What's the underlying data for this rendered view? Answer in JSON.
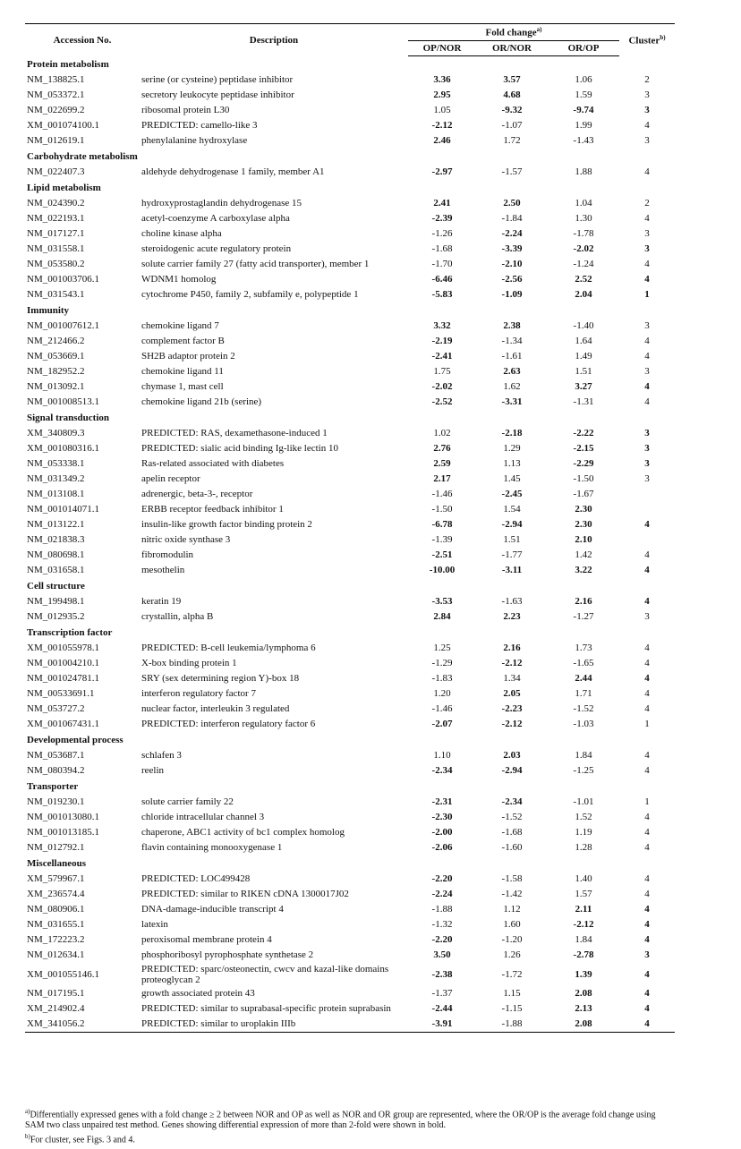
{
  "table": {
    "header": {
      "accession": "Accession No.",
      "description": "Description",
      "fold_change": "Fold change",
      "fold_change_note": "a)",
      "op_nor": "OP/NOR",
      "or_nor": "OR/NOR",
      "or_op": "OR/OP",
      "cluster": "Cluster",
      "cluster_note": "b)"
    },
    "sections": [
      {
        "title": "Protein metabolism",
        "rows": [
          {
            "cells": [
              "NM_138825.1",
              "serine (or cysteine) peptidase inhibitor",
              "3.36",
              "3.57",
              "1.06",
              "2"
            ],
            "bold": [
              2,
              3
            ]
          },
          {
            "cells": [
              "NM_053372.1",
              "secretory leukocyte peptidase inhibitor",
              "2.95",
              "4.68",
              "1.59",
              "3"
            ],
            "bold": [
              2,
              3
            ]
          },
          {
            "cells": [
              "NM_022699.2",
              "ribosomal protein L30",
              "1.05",
              "-9.32",
              "-9.74",
              "3"
            ],
            "bold": [
              3,
              4,
              5
            ]
          },
          {
            "cells": [
              "XM_001074100.1",
              "PREDICTED: camello-like 3",
              "-2.12",
              "-1.07",
              "1.99",
              "4"
            ],
            "bold": [
              2
            ]
          },
          {
            "cells": [
              "NM_012619.1",
              "phenylalanine hydroxylase",
              "2.46",
              "1.72",
              "-1.43",
              "3"
            ],
            "bold": [
              2
            ]
          }
        ]
      },
      {
        "title": "Carbohydrate metabolism",
        "rows": [
          {
            "cells": [
              "NM_022407.3",
              "aldehyde dehydrogenase 1 family, member A1",
              "-2.97",
              "-1.57",
              "1.88",
              "4"
            ],
            "bold": [
              2
            ]
          }
        ]
      },
      {
        "title": "Lipid metabolism",
        "rows": [
          {
            "cells": [
              "NM_024390.2",
              "hydroxyprostaglandin dehydrogenase 15",
              "2.41",
              "2.50",
              "1.04",
              "2"
            ],
            "bold": [
              2,
              3
            ]
          },
          {
            "cells": [
              "NM_022193.1",
              "acetyl-coenzyme A carboxylase alpha",
              "-2.39",
              "-1.84",
              "1.30",
              "4"
            ],
            "bold": [
              2
            ]
          },
          {
            "cells": [
              "NM_017127.1",
              "choline kinase alpha",
              "-1.26",
              "-2.24",
              "-1.78",
              "3"
            ],
            "bold": [
              3
            ]
          },
          {
            "cells": [
              "NM_031558.1",
              "steroidogenic acute regulatory protein",
              "-1.68",
              "-3.39",
              "-2.02",
              "3"
            ],
            "bold": [
              3,
              4,
              5
            ]
          },
          {
            "cells": [
              "NM_053580.2",
              "solute carrier family 27 (fatty acid transporter), member 1",
              "-1.70",
              "-2.10",
              "-1.24",
              "4"
            ],
            "bold": [
              3
            ]
          },
          {
            "cells": [
              "NM_001003706.1",
              "WDNM1 homolog",
              "-6.46",
              "-2.56",
              "2.52",
              "4"
            ],
            "bold": [
              2,
              3,
              4,
              5
            ]
          },
          {
            "cells": [
              "NM_031543.1",
              "cytochrome P450, family 2, subfamily e, polypeptide 1",
              "-5.83",
              "-1.09",
              "2.04",
              "1"
            ],
            "bold": [
              2,
              3,
              4,
              5
            ]
          }
        ]
      },
      {
        "title": "Immunity",
        "rows": [
          {
            "cells": [
              "NM_001007612.1",
              "chemokine ligand 7",
              "3.32",
              "2.38",
              "-1.40",
              "3"
            ],
            "bold": [
              2,
              3
            ]
          },
          {
            "cells": [
              "NM_212466.2",
              "complement factor B",
              "-2.19",
              "-1.34",
              "1.64",
              "4"
            ],
            "bold": [
              2
            ]
          },
          {
            "cells": [
              "NM_053669.1",
              "SH2B adaptor protein 2",
              "-2.41",
              "-1.61",
              "1.49",
              "4"
            ],
            "bold": [
              2
            ]
          },
          {
            "cells": [
              "NM_182952.2",
              "chemokine ligand 11",
              "1.75",
              "2.63",
              "1.51",
              "3"
            ],
            "bold": [
              3
            ]
          },
          {
            "cells": [
              "NM_013092.1",
              "chymase 1, mast cell",
              "-2.02",
              "1.62",
              "3.27",
              "4"
            ],
            "bold": [
              2,
              4,
              5
            ]
          },
          {
            "cells": [
              "NM_001008513.1",
              "chemokine ligand 21b (serine)",
              "-2.52",
              "-3.31",
              "-1.31",
              "4"
            ],
            "bold": [
              2,
              3
            ]
          }
        ]
      },
      {
        "title": "Signal transduction",
        "rows": [
          {
            "cells": [
              "XM_340809.3",
              "PREDICTED: RAS, dexamethasone-induced 1",
              "1.02",
              "-2.18",
              "-2.22",
              "3"
            ],
            "bold": [
              3,
              4,
              5
            ]
          },
          {
            "cells": [
              "XM_001080316.1",
              "PREDICTED: sialic acid binding Ig-like lectin 10",
              "2.76",
              "1.29",
              "-2.15",
              "3"
            ],
            "bold": [
              2,
              4,
              5
            ]
          },
          {
            "cells": [
              "NM_053338.1",
              "Ras-related associated with diabetes",
              "2.59",
              "1.13",
              "-2.29",
              "3"
            ],
            "bold": [
              2,
              4,
              5
            ]
          },
          {
            "cells": [
              "NM_031349.2",
              "apelin receptor",
              "2.17",
              "1.45",
              "-1.50",
              "3"
            ],
            "bold": [
              2
            ]
          },
          {
            "cells": [
              "NM_013108.1",
              "adrenergic, beta-3-, receptor",
              "-1.46",
              "-2.45",
              "-1.67",
              null
            ],
            "bold": [
              3
            ]
          },
          {
            "cells": [
              "NM_001014071.1",
              "ERBB receptor feedback inhibitor 1",
              "-1.50",
              "1.54",
              "2.30",
              null
            ],
            "bold": [
              4
            ]
          },
          {
            "cells": [
              "NM_013122.1",
              "insulin-like growth factor binding protein 2",
              "-6.78",
              "-2.94",
              "2.30",
              "4"
            ],
            "bold": [
              2,
              3,
              4,
              5
            ]
          },
          {
            "cells": [
              "NM_021838.3",
              "nitric oxide synthase 3",
              "-1.39",
              "1.51",
              "2.10",
              null
            ],
            "bold": [
              4
            ]
          },
          {
            "cells": [
              "NM_080698.1",
              "fibromodulin",
              "-2.51",
              "-1.77",
              "1.42",
              "4"
            ],
            "bold": [
              2
            ]
          },
          {
            "cells": [
              "NM_031658.1",
              "mesothelin",
              "-10.00",
              "-3.11",
              "3.22",
              "4"
            ],
            "bold": [
              2,
              3,
              4,
              5
            ]
          }
        ]
      },
      {
        "title": "Cell structure",
        "rows": [
          {
            "cells": [
              "NM_199498.1",
              "keratin 19",
              "-3.53",
              "-1.63",
              "2.16",
              "4"
            ],
            "bold": [
              2,
              4,
              5
            ]
          },
          {
            "cells": [
              "NM_012935.2",
              "crystallin, alpha B",
              "2.84",
              "2.23",
              "-1.27",
              "3"
            ],
            "bold": [
              2,
              3
            ]
          }
        ]
      },
      {
        "title": "Transcription factor",
        "rows": [
          {
            "cells": [
              "XM_001055978.1",
              "PREDICTED: B-cell leukemia/lymphoma 6",
              "1.25",
              "2.16",
              "1.73",
              "4"
            ],
            "bold": [
              3
            ]
          },
          {
            "cells": [
              "NM_001004210.1",
              "X-box binding protein 1",
              "-1.29",
              "-2.12",
              "-1.65",
              "4"
            ],
            "bold": [
              3
            ]
          },
          {
            "cells": [
              "NM_001024781.1",
              "SRY (sex determining region Y)-box 18",
              "-1.83",
              "1.34",
              "2.44",
              "4"
            ],
            "bold": [
              4,
              5
            ]
          },
          {
            "cells": [
              "NM_00533691.1",
              "interferon regulatory factor 7",
              "1.20",
              "2.05",
              "1.71",
              "4"
            ],
            "bold": [
              3
            ]
          },
          {
            "cells": [
              "NM_053727.2",
              "nuclear factor, interleukin 3 regulated",
              "-1.46",
              "-2.23",
              "-1.52",
              "4"
            ],
            "bold": [
              3
            ]
          },
          {
            "cells": [
              "XM_001067431.1",
              "PREDICTED: interferon regulatory factor 6",
              "-2.07",
              "-2.12",
              "-1.03",
              "1"
            ],
            "bold": [
              2,
              3
            ]
          }
        ]
      },
      {
        "title": "Developmental process",
        "rows": [
          {
            "cells": [
              "NM_053687.1",
              "schlafen 3",
              "1.10",
              "2.03",
              "1.84",
              "4"
            ],
            "bold": [
              3
            ]
          },
          {
            "cells": [
              "NM_080394.2",
              "reelin",
              "-2.34",
              "-2.94",
              "-1.25",
              "4"
            ],
            "bold": [
              2,
              3
            ]
          }
        ]
      },
      {
        "title": "Transporter",
        "rows": [
          {
            "cells": [
              "NM_019230.1",
              "solute carrier family 22",
              "-2.31",
              "-2.34",
              "-1.01",
              "1"
            ],
            "bold": [
              2,
              3
            ]
          },
          {
            "cells": [
              "NM_001013080.1",
              "chloride intracellular channel 3",
              "-2.30",
              "-1.52",
              "1.52",
              "4"
            ],
            "bold": [
              2
            ]
          },
          {
            "cells": [
              "NM_001013185.1",
              "chaperone, ABC1 activity of bc1 complex homolog",
              "-2.00",
              "-1.68",
              "1.19",
              "4"
            ],
            "bold": [
              2
            ]
          },
          {
            "cells": [
              "NM_012792.1",
              "flavin containing monooxygenase 1",
              "-2.06",
              "-1.60",
              "1.28",
              "4"
            ],
            "bold": [
              2
            ]
          }
        ]
      },
      {
        "title": "Miscellaneous",
        "rows": [
          {
            "cells": [
              "XM_579967.1",
              "PREDICTED: LOC499428",
              "-2.20",
              "-1.58",
              "1.40",
              "4"
            ],
            "bold": [
              2
            ]
          },
          {
            "cells": [
              "XM_236574.4",
              "PREDICTED: similar to RIKEN cDNA 1300017J02",
              "-2.24",
              "-1.42",
              "1.57",
              "4"
            ],
            "bold": [
              2
            ]
          },
          {
            "cells": [
              "NM_080906.1",
              "DNA-damage-inducible transcript 4",
              "-1.88",
              "1.12",
              "2.11",
              "4"
            ],
            "bold": [
              4,
              5
            ]
          },
          {
            "cells": [
              "NM_031655.1",
              "latexin",
              "-1.32",
              "1.60",
              "-2.12",
              "4"
            ],
            "bold": [
              4,
              5
            ]
          },
          {
            "cells": [
              "NM_172223.2",
              "peroxisomal membrane protein 4",
              "-2.20",
              "-1.20",
              "1.84",
              "4"
            ],
            "bold": [
              2,
              5
            ]
          },
          {
            "cells": [
              "NM_012634.1",
              "phosphoribosyl pyrophosphate synthetase 2",
              "3.50",
              "1.26",
              "-2.78",
              "3"
            ],
            "bold": [
              2,
              4,
              5
            ]
          },
          {
            "cells": [
              "XM_001055146.1",
              "PREDICTED: sparc/osteonectin, cwcv and kazal-like domains proteoglycan 2",
              "-2.38",
              "-1.72",
              "1.39",
              "4"
            ],
            "bold": [
              2,
              4,
              5
            ]
          },
          {
            "cells": [
              "NM_017195.1",
              "growth associated protein 43",
              "-1.37",
              "1.15",
              "2.08",
              "4"
            ],
            "bold": [
              4,
              5
            ]
          },
          {
            "cells": [
              "XM_214902.4",
              "PREDICTED: similar to suprabasal-specific protein suprabasin",
              "-2.44",
              "-1.15",
              "2.13",
              "4"
            ],
            "bold": [
              2,
              4,
              5
            ]
          },
          {
            "cells": [
              "XM_341056.2",
              "PREDICTED: similar to uroplakin IIIb",
              "-3.91",
              "-1.88",
              "2.08",
              "4"
            ],
            "bold": [
              2,
              4,
              5
            ]
          }
        ]
      }
    ]
  },
  "footnotes": [
    {
      "mark": "a)",
      "text": "Differentially expressed genes with a fold change ≥ 2 between NOR and OP as well as NOR and OR group are represented, where the OR/OP is the average fold change using SAM two class unpaired test method. Genes showing differential expression of more than 2-fold were shown in bold."
    },
    {
      "mark": "b)",
      "text": "For cluster, see Figs. 3 and 4."
    }
  ]
}
